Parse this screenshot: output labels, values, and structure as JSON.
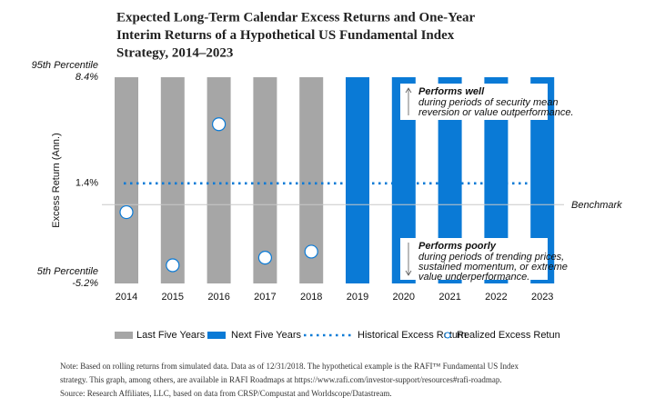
{
  "chart_data": {
    "type": "range-bar",
    "title": [
      "Expected Long-Term Calendar Excess Returns and One-Year",
      "Interim Returns of a Hypothetical US Fundamental Index",
      "Strategy, 2014–2023"
    ],
    "ylabel": "Excess Return (Ann.)",
    "categories": [
      "2014",
      "2015",
      "2016",
      "2017",
      "2018",
      "2019",
      "2020",
      "2021",
      "2022",
      "2023"
    ],
    "ylim": [
      -5.2,
      8.4
    ],
    "yticks": [
      {
        "value": 8.4,
        "label": "8.4%"
      },
      {
        "value": 1.4,
        "label": "1.4%"
      },
      {
        "value": -5.2,
        "label": "-5.2%"
      }
    ],
    "upper_label": "95th Percentile",
    "lower_label": "5th Percentile",
    "series": [
      {
        "name": "Last Five Years",
        "type": "range",
        "color": "#a6a6a6",
        "low": [
          -5.2,
          -5.2,
          -5.2,
          -5.2,
          -5.2,
          null,
          null,
          null,
          null,
          null
        ],
        "high": [
          8.4,
          8.4,
          8.4,
          8.4,
          8.4,
          null,
          null,
          null,
          null,
          null
        ]
      },
      {
        "name": "Next Five Years",
        "type": "range",
        "color": "#0a7ad6",
        "low": [
          null,
          null,
          null,
          null,
          null,
          -5.2,
          -5.2,
          -5.2,
          -5.2,
          -5.2
        ],
        "high": [
          null,
          null,
          null,
          null,
          null,
          8.4,
          8.4,
          8.4,
          8.4,
          8.4
        ]
      },
      {
        "name": "Historical Excess Return",
        "type": "line",
        "color": "#0a7ad6",
        "values": [
          1.4,
          1.4,
          1.4,
          1.4,
          1.4,
          1.4,
          1.4,
          1.4,
          1.4,
          1.4
        ]
      },
      {
        "name": "Realized Excess Retun",
        "type": "scatter",
        "color": "#0a7ad6",
        "values": [
          -0.5,
          -4.0,
          5.3,
          -3.5,
          -3.1,
          null,
          null,
          null,
          null,
          null
        ]
      }
    ],
    "benchmark": {
      "label": "Benchmark",
      "value": 0
    },
    "annotations": [
      {
        "title": "Performs well",
        "lines": [
          "during periods of security mean",
          "reversion or value outperformance."
        ]
      },
      {
        "title": "Performs poorly",
        "lines": [
          "during periods of trending prices,",
          "sustained momentum,  or extreme",
          "value underperformance."
        ]
      }
    ],
    "note": [
      "Note: Based on rolling returns from simulated data. Data as of 12/31/2018. The hypothetical example is the RAFI™ Fundamental US Index",
      "strategy. This graph, among others, are available in RAFI Roadmaps at https://www.rafi.com/investor-support/resources#rafi-roadmap.",
      "Source: Research Affiliates, LLC, based on data from CRSP/Compustat and Worldscope/Datastream."
    ]
  }
}
